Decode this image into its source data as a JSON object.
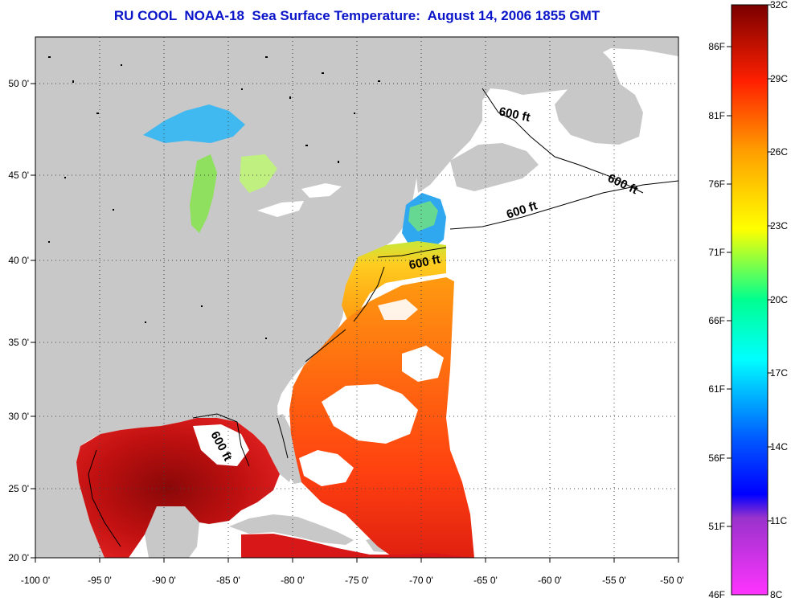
{
  "title": "RU COOL  NOAA-18  Sea Surface Temperature:  August 14, 2006 1855 GMT",
  "map": {
    "lon_range": [
      -100,
      -50
    ],
    "lat_range": [
      20,
      52.5
    ],
    "x_tick_labels": [
      "-100 0'",
      "-95 0'",
      "-90 0'",
      "-85 0'",
      "-80 0'",
      "-75 0'",
      "-70 0'",
      "-65 0'",
      "-60 0'",
      "-55 0'",
      "-50 0'"
    ],
    "y_tick_labels": [
      "20 0'",
      "25 0'",
      "30 0'",
      "35 0'",
      "40 0'",
      "45 0'",
      "50 0'"
    ],
    "grid": "dotted",
    "land_color": "#c8c8c8",
    "contour_labels": [
      "600 ft",
      "600 ft",
      "600 ft",
      "600 ft",
      "600 ft"
    ]
  },
  "colorbar": {
    "range_celsius": [
      8,
      32
    ],
    "celsius_labels": [
      "32C",
      "29C",
      "26C",
      "23C",
      "20C",
      "17C",
      "14C",
      "11C",
      "8C"
    ],
    "fahrenheit_labels": [
      "86F",
      "81F",
      "76F",
      "71F",
      "66F",
      "61F",
      "56F",
      "51F",
      "46F"
    ],
    "colors": [
      "#7a0000",
      "#ff0000",
      "#ff8000",
      "#ffff00",
      "#00ff80",
      "#00ffff",
      "#0040ff",
      "#0000ff",
      "#8000c0",
      "#ff40ff"
    ]
  }
}
